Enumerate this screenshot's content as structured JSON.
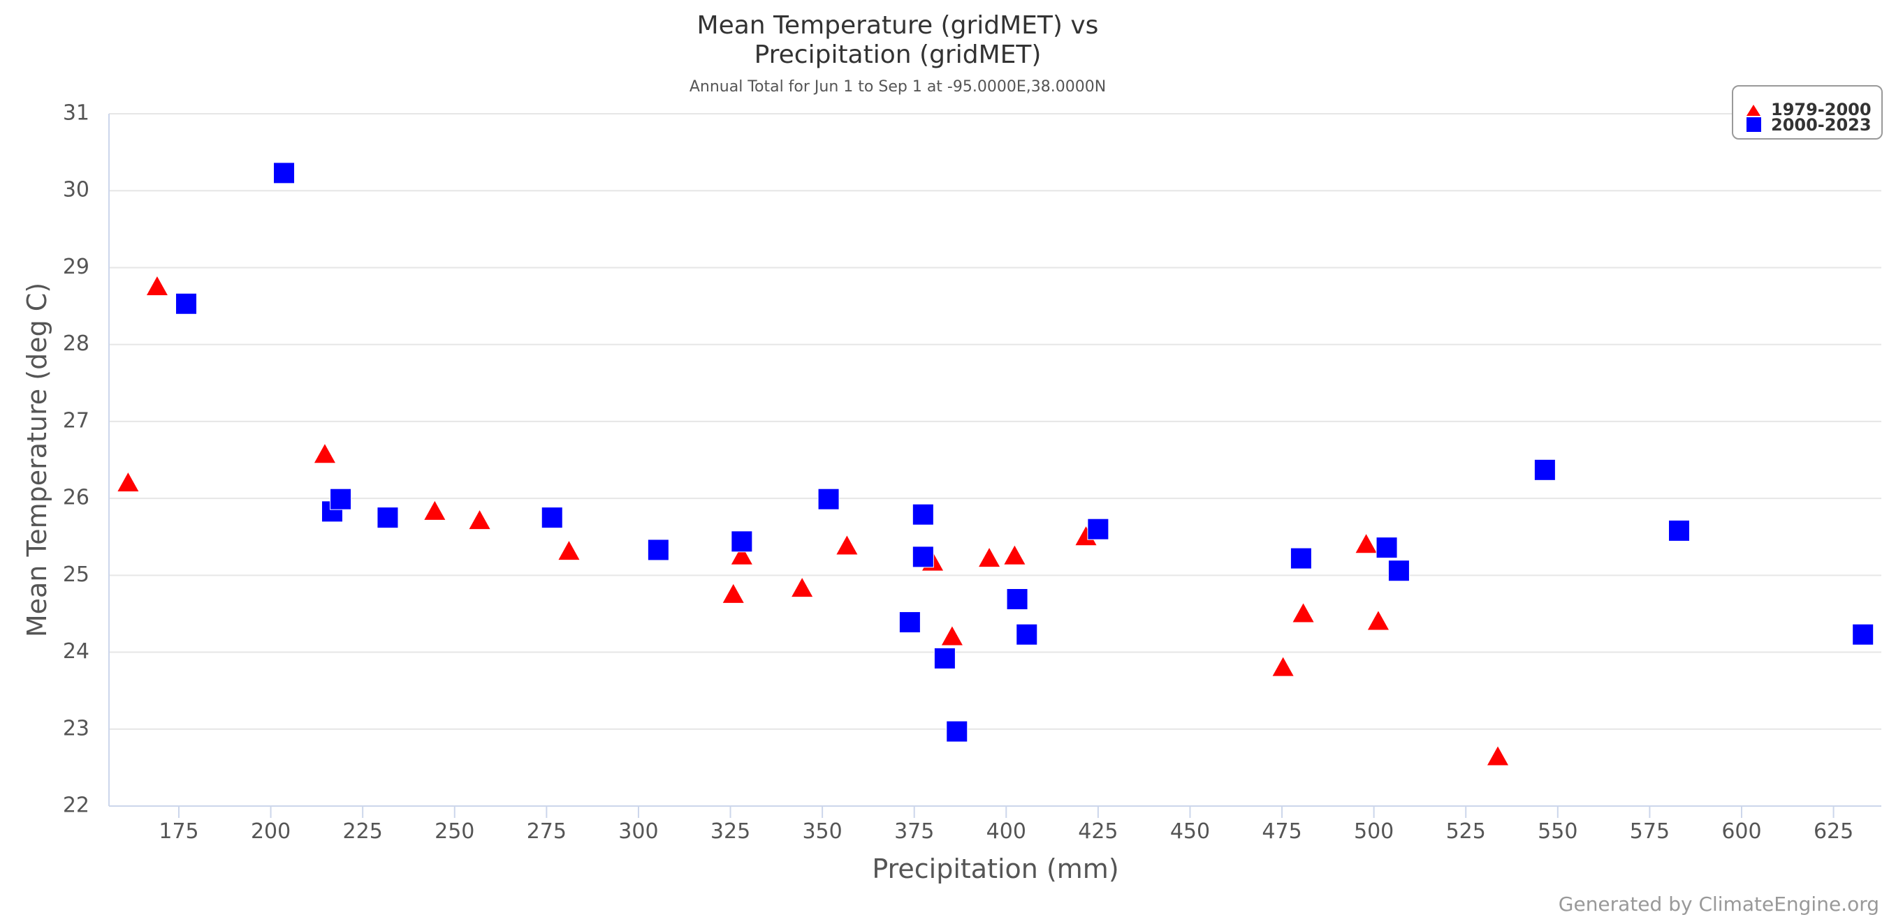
{
  "chart_data": {
    "type": "scatter",
    "title_lines": [
      "Mean Temperature (gridMET) vs",
      "Precipitation (gridMET)"
    ],
    "subtitle": "Annual Total for Jun 1 to Sep 1 at -95.0000E,38.0000N",
    "xlabel": "Precipitation (mm)",
    "ylabel": "Mean Temperature (deg C)",
    "xlim": [
      156,
      638
    ],
    "ylim": [
      22,
      31
    ],
    "xticks": [
      175,
      200,
      225,
      250,
      275,
      300,
      325,
      350,
      375,
      400,
      425,
      450,
      475,
      500,
      525,
      550,
      575,
      600,
      625
    ],
    "yticks": [
      22,
      23,
      24,
      25,
      26,
      27,
      28,
      29,
      30,
      31
    ],
    "grid": "horizontal",
    "legend_position": "top-right",
    "credits": "Generated by ClimateEngine.org",
    "series": [
      {
        "name": "1979-2000",
        "marker": "triangle",
        "color": "#ff0000",
        "points": [
          [
            161.2,
            26.2
          ],
          [
            169.1,
            28.75
          ],
          [
            214.7,
            26.57
          ],
          [
            244.6,
            25.83
          ],
          [
            256.8,
            25.71
          ],
          [
            281.1,
            25.31
          ],
          [
            325.8,
            24.75
          ],
          [
            328.1,
            25.25
          ],
          [
            344.5,
            24.83
          ],
          [
            356.7,
            25.38
          ],
          [
            380.0,
            25.17
          ],
          [
            385.3,
            24.2
          ],
          [
            395.4,
            25.22
          ],
          [
            402.3,
            25.25
          ],
          [
            421.7,
            25.5
          ],
          [
            475.3,
            23.8
          ],
          [
            480.8,
            24.5
          ],
          [
            497.9,
            25.4
          ],
          [
            501.2,
            24.4
          ],
          [
            533.7,
            22.64
          ]
        ]
      },
      {
        "name": "2000-2023",
        "marker": "square",
        "color": "#0000ff",
        "points": [
          [
            203.6,
            30.23
          ],
          [
            177.0,
            28.53
          ],
          [
            216.7,
            25.83
          ],
          [
            219.0,
            25.99
          ],
          [
            231.8,
            25.75
          ],
          [
            276.5,
            25.75
          ],
          [
            305.4,
            25.33
          ],
          [
            328.1,
            25.44
          ],
          [
            351.7,
            25.99
          ],
          [
            373.8,
            24.39
          ],
          [
            377.4,
            25.79
          ],
          [
            377.4,
            25.24
          ],
          [
            383.3,
            23.92
          ],
          [
            386.6,
            22.97
          ],
          [
            403.0,
            24.69
          ],
          [
            405.6,
            24.23
          ],
          [
            425.0,
            25.6
          ],
          [
            480.2,
            25.22
          ],
          [
            503.5,
            25.36
          ],
          [
            506.8,
            25.06
          ],
          [
            546.5,
            26.37
          ],
          [
            583.0,
            25.58
          ],
          [
            633.0,
            24.23
          ]
        ]
      }
    ]
  }
}
